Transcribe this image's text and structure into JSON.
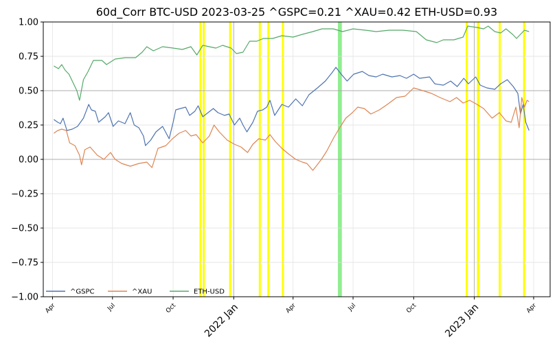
{
  "chart_data": {
    "type": "line",
    "title": "60d_Corr BTC-USD 2023-03-25 ^GSPC=0.21 ^XAU=0.42 ETH-USD=0.93",
    "xlabel": "",
    "ylabel": "",
    "x_range": [
      "2021-03-18",
      "2023-04-26"
    ],
    "ylim": [
      -1.0,
      1.0
    ],
    "y_ticks": [
      -1.0,
      -0.75,
      -0.5,
      -0.25,
      0.0,
      0.25,
      0.5,
      0.75,
      1.0
    ],
    "y_tick_labels": [
      "−1.00",
      "−0.75",
      "−0.50",
      "−0.25",
      "0.00",
      "0.25",
      "0.50",
      "0.75",
      "1.00"
    ],
    "x_ticks": [
      {
        "date": "2021-04-01",
        "label": "Apr",
        "major": false
      },
      {
        "date": "2021-07-01",
        "label": "Jul",
        "major": false
      },
      {
        "date": "2021-10-01",
        "label": "Oct",
        "major": false
      },
      {
        "date": "2022-01-01",
        "label": "2022 Jan",
        "major": true
      },
      {
        "date": "2022-04-01",
        "label": "Apr",
        "major": false
      },
      {
        "date": "2022-07-01",
        "label": "Jul",
        "major": false
      },
      {
        "date": "2022-10-01",
        "label": "Oct",
        "major": false
      },
      {
        "date": "2023-01-01",
        "label": "2023 Jan",
        "major": true
      },
      {
        "date": "2023-04-01",
        "label": "Apr",
        "major": false
      }
    ],
    "grid": true,
    "legend_position": "lower-left",
    "hlines": [
      0.0,
      0.5
    ],
    "highlight_bands": [
      {
        "start": "2021-11-10",
        "end": "2021-11-12",
        "color": "#ffff00"
      },
      {
        "start": "2021-11-15",
        "end": "2021-11-18",
        "color": "#ffff00"
      },
      {
        "start": "2021-12-25",
        "end": "2021-12-27",
        "color": "#ffff00"
      },
      {
        "start": "2022-02-08",
        "end": "2022-02-10",
        "color": "#ffff00"
      },
      {
        "start": "2022-02-21",
        "end": "2022-02-24",
        "color": "#ffff00"
      },
      {
        "start": "2022-03-15",
        "end": "2022-03-18",
        "color": "#ffff00"
      },
      {
        "start": "2022-06-08",
        "end": "2022-06-14",
        "color": "#90ee90"
      },
      {
        "start": "2022-12-19",
        "end": "2022-12-22",
        "color": "#ffff00"
      },
      {
        "start": "2023-01-05",
        "end": "2023-01-09",
        "color": "#ffff00"
      },
      {
        "start": "2023-02-07",
        "end": "2023-02-09",
        "color": "#ffff00"
      },
      {
        "start": "2023-03-16",
        "end": "2023-03-17",
        "color": "#ffff00"
      }
    ],
    "series": [
      {
        "name": "^GSPC",
        "color": "#4c72b0",
        "points": [
          [
            "2021-04-03",
            0.29
          ],
          [
            "2021-04-09",
            0.27
          ],
          [
            "2021-04-13",
            0.26
          ],
          [
            "2021-04-17",
            0.3
          ],
          [
            "2021-04-23",
            0.21
          ],
          [
            "2021-05-01",
            0.22
          ],
          [
            "2021-05-09",
            0.24
          ],
          [
            "2021-05-18",
            0.3
          ],
          [
            "2021-05-26",
            0.4
          ],
          [
            "2021-05-30",
            0.36
          ],
          [
            "2021-06-05",
            0.35
          ],
          [
            "2021-06-10",
            0.27
          ],
          [
            "2021-06-20",
            0.31
          ],
          [
            "2021-06-25",
            0.34
          ],
          [
            "2021-07-02",
            0.24
          ],
          [
            "2021-07-10",
            0.28
          ],
          [
            "2021-07-20",
            0.26
          ],
          [
            "2021-07-28",
            0.34
          ],
          [
            "2021-08-03",
            0.25
          ],
          [
            "2021-08-10",
            0.23
          ],
          [
            "2021-08-17",
            0.17
          ],
          [
            "2021-08-20",
            0.1
          ],
          [
            "2021-08-28",
            0.14
          ],
          [
            "2021-09-05",
            0.2
          ],
          [
            "2021-09-15",
            0.24
          ],
          [
            "2021-09-25",
            0.15
          ],
          [
            "2021-10-01",
            0.27
          ],
          [
            "2021-10-05",
            0.36
          ],
          [
            "2021-10-12",
            0.37
          ],
          [
            "2021-10-20",
            0.38
          ],
          [
            "2021-10-26",
            0.32
          ],
          [
            "2021-11-03",
            0.35
          ],
          [
            "2021-11-08",
            0.39
          ],
          [
            "2021-11-15",
            0.31
          ],
          [
            "2021-11-23",
            0.34
          ],
          [
            "2021-12-01",
            0.37
          ],
          [
            "2021-12-08",
            0.34
          ],
          [
            "2021-12-18",
            0.32
          ],
          [
            "2021-12-25",
            0.33
          ],
          [
            "2022-01-02",
            0.25
          ],
          [
            "2022-01-10",
            0.3
          ],
          [
            "2022-01-15",
            0.25
          ],
          [
            "2022-01-21",
            0.2
          ],
          [
            "2022-01-30",
            0.27
          ],
          [
            "2022-02-06",
            0.35
          ],
          [
            "2022-02-14",
            0.36
          ],
          [
            "2022-02-20",
            0.38
          ],
          [
            "2022-02-25",
            0.43
          ],
          [
            "2022-03-04",
            0.32
          ],
          [
            "2022-03-15",
            0.4
          ],
          [
            "2022-03-25",
            0.38
          ],
          [
            "2022-04-05",
            0.44
          ],
          [
            "2022-04-15",
            0.39
          ],
          [
            "2022-04-25",
            0.47
          ],
          [
            "2022-05-08",
            0.52
          ],
          [
            "2022-05-20",
            0.57
          ],
          [
            "2022-05-30",
            0.63
          ],
          [
            "2022-06-05",
            0.67
          ],
          [
            "2022-06-13",
            0.62
          ],
          [
            "2022-06-22",
            0.57
          ],
          [
            "2022-07-02",
            0.62
          ],
          [
            "2022-07-15",
            0.64
          ],
          [
            "2022-07-25",
            0.61
          ],
          [
            "2022-08-05",
            0.6
          ],
          [
            "2022-08-15",
            0.62
          ],
          [
            "2022-08-29",
            0.6
          ],
          [
            "2022-09-10",
            0.61
          ],
          [
            "2022-09-20",
            0.59
          ],
          [
            "2022-10-01",
            0.62
          ],
          [
            "2022-10-10",
            0.59
          ],
          [
            "2022-10-25",
            0.6
          ],
          [
            "2022-11-02",
            0.55
          ],
          [
            "2022-11-15",
            0.54
          ],
          [
            "2022-11-26",
            0.57
          ],
          [
            "2022-12-06",
            0.53
          ],
          [
            "2022-12-16",
            0.59
          ],
          [
            "2022-12-23",
            0.55
          ],
          [
            "2023-01-03",
            0.6
          ],
          [
            "2023-01-10",
            0.54
          ],
          [
            "2023-01-20",
            0.52
          ],
          [
            "2023-02-01",
            0.51
          ],
          [
            "2023-02-10",
            0.55
          ],
          [
            "2023-02-20",
            0.58
          ],
          [
            "2023-03-01",
            0.53
          ],
          [
            "2023-03-08",
            0.48
          ],
          [
            "2023-03-12",
            0.33
          ],
          [
            "2023-03-16",
            0.4
          ],
          [
            "2023-03-20",
            0.27
          ],
          [
            "2023-03-25",
            0.21
          ]
        ]
      },
      {
        "name": "^XAU",
        "color": "#dd8452",
        "points": [
          [
            "2021-04-03",
            0.19
          ],
          [
            "2021-04-09",
            0.21
          ],
          [
            "2021-04-15",
            0.22
          ],
          [
            "2021-04-22",
            0.21
          ],
          [
            "2021-04-27",
            0.12
          ],
          [
            "2021-05-05",
            0.1
          ],
          [
            "2021-05-12",
            0.03
          ],
          [
            "2021-05-15",
            -0.04
          ],
          [
            "2021-05-20",
            0.07
          ],
          [
            "2021-05-28",
            0.09
          ],
          [
            "2021-06-08",
            0.03
          ],
          [
            "2021-06-18",
            0.0
          ],
          [
            "2021-06-28",
            0.05
          ],
          [
            "2021-07-05",
            0.0
          ],
          [
            "2021-07-15",
            -0.03
          ],
          [
            "2021-07-28",
            -0.05
          ],
          [
            "2021-08-10",
            -0.03
          ],
          [
            "2021-08-22",
            -0.02
          ],
          [
            "2021-08-30",
            -0.06
          ],
          [
            "2021-09-08",
            0.08
          ],
          [
            "2021-09-20",
            0.1
          ],
          [
            "2021-09-30",
            0.15
          ],
          [
            "2021-10-10",
            0.19
          ],
          [
            "2021-10-20",
            0.21
          ],
          [
            "2021-10-28",
            0.17
          ],
          [
            "2021-11-05",
            0.18
          ],
          [
            "2021-11-15",
            0.12
          ],
          [
            "2021-11-25",
            0.17
          ],
          [
            "2021-12-02",
            0.25
          ],
          [
            "2021-12-10",
            0.2
          ],
          [
            "2021-12-22",
            0.14
          ],
          [
            "2022-01-02",
            0.11
          ],
          [
            "2022-01-12",
            0.09
          ],
          [
            "2022-01-22",
            0.05
          ],
          [
            "2022-01-30",
            0.11
          ],
          [
            "2022-02-08",
            0.15
          ],
          [
            "2022-02-18",
            0.14
          ],
          [
            "2022-02-25",
            0.18
          ],
          [
            "2022-03-05",
            0.13
          ],
          [
            "2022-03-15",
            0.08
          ],
          [
            "2022-03-25",
            0.04
          ],
          [
            "2022-04-05",
            0.0
          ],
          [
            "2022-04-15",
            -0.02
          ],
          [
            "2022-04-22",
            -0.03
          ],
          [
            "2022-05-01",
            -0.08
          ],
          [
            "2022-05-06",
            -0.05
          ],
          [
            "2022-05-14",
            0.0
          ],
          [
            "2022-05-22",
            0.06
          ],
          [
            "2022-06-02",
            0.16
          ],
          [
            "2022-06-12",
            0.24
          ],
          [
            "2022-06-20",
            0.3
          ],
          [
            "2022-06-30",
            0.34
          ],
          [
            "2022-07-08",
            0.38
          ],
          [
            "2022-07-18",
            0.37
          ],
          [
            "2022-07-28",
            0.33
          ],
          [
            "2022-08-10",
            0.36
          ],
          [
            "2022-08-22",
            0.4
          ],
          [
            "2022-09-05",
            0.45
          ],
          [
            "2022-09-18",
            0.46
          ],
          [
            "2022-10-01",
            0.52
          ],
          [
            "2022-10-15",
            0.5
          ],
          [
            "2022-10-28",
            0.48
          ],
          [
            "2022-11-10",
            0.45
          ],
          [
            "2022-11-25",
            0.42
          ],
          [
            "2022-12-05",
            0.45
          ],
          [
            "2022-12-15",
            0.41
          ],
          [
            "2022-12-25",
            0.43
          ],
          [
            "2023-01-05",
            0.4
          ],
          [
            "2023-01-15",
            0.37
          ],
          [
            "2023-01-28",
            0.3
          ],
          [
            "2023-02-08",
            0.34
          ],
          [
            "2023-02-18",
            0.28
          ],
          [
            "2023-02-26",
            0.27
          ],
          [
            "2023-03-05",
            0.38
          ],
          [
            "2023-03-10",
            0.23
          ],
          [
            "2023-03-14",
            0.45
          ],
          [
            "2023-03-18",
            0.38
          ],
          [
            "2023-03-22",
            0.43
          ],
          [
            "2023-03-25",
            0.42
          ]
        ]
      },
      {
        "name": "ETH-USD",
        "color": "#55a868",
        "points": [
          [
            "2021-04-03",
            0.68
          ],
          [
            "2021-04-10",
            0.66
          ],
          [
            "2021-04-15",
            0.69
          ],
          [
            "2021-04-20",
            0.65
          ],
          [
            "2021-04-26",
            0.62
          ],
          [
            "2021-05-02",
            0.56
          ],
          [
            "2021-05-08",
            0.5
          ],
          [
            "2021-05-12",
            0.43
          ],
          [
            "2021-05-18",
            0.58
          ],
          [
            "2021-05-25",
            0.64
          ],
          [
            "2021-06-02",
            0.72
          ],
          [
            "2021-06-15",
            0.72
          ],
          [
            "2021-06-22",
            0.69
          ],
          [
            "2021-07-05",
            0.73
          ],
          [
            "2021-07-20",
            0.74
          ],
          [
            "2021-08-05",
            0.74
          ],
          [
            "2021-08-15",
            0.78
          ],
          [
            "2021-08-22",
            0.82
          ],
          [
            "2021-09-01",
            0.79
          ],
          [
            "2021-09-15",
            0.82
          ],
          [
            "2021-10-01",
            0.81
          ],
          [
            "2021-10-15",
            0.8
          ],
          [
            "2021-10-28",
            0.82
          ],
          [
            "2021-11-06",
            0.76
          ],
          [
            "2021-11-15",
            0.83
          ],
          [
            "2021-11-25",
            0.82
          ],
          [
            "2021-12-05",
            0.81
          ],
          [
            "2021-12-15",
            0.83
          ],
          [
            "2021-12-28",
            0.81
          ],
          [
            "2022-01-05",
            0.77
          ],
          [
            "2022-01-15",
            0.78
          ],
          [
            "2022-01-25",
            0.86
          ],
          [
            "2022-02-05",
            0.86
          ],
          [
            "2022-02-15",
            0.88
          ],
          [
            "2022-03-01",
            0.88
          ],
          [
            "2022-03-15",
            0.9
          ],
          [
            "2022-04-01",
            0.89
          ],
          [
            "2022-04-15",
            0.91
          ],
          [
            "2022-05-01",
            0.93
          ],
          [
            "2022-05-15",
            0.95
          ],
          [
            "2022-06-01",
            0.95
          ],
          [
            "2022-06-15",
            0.93
          ],
          [
            "2022-07-01",
            0.95
          ],
          [
            "2022-07-20",
            0.94
          ],
          [
            "2022-08-05",
            0.93
          ],
          [
            "2022-08-25",
            0.94
          ],
          [
            "2022-09-15",
            0.94
          ],
          [
            "2022-10-05",
            0.93
          ],
          [
            "2022-10-20",
            0.87
          ],
          [
            "2022-11-05",
            0.85
          ],
          [
            "2022-11-15",
            0.87
          ],
          [
            "2022-12-01",
            0.87
          ],
          [
            "2022-12-15",
            0.89
          ],
          [
            "2022-12-22",
            0.97
          ],
          [
            "2023-01-05",
            0.96
          ],
          [
            "2023-01-15",
            0.95
          ],
          [
            "2023-01-22",
            0.97
          ],
          [
            "2023-02-01",
            0.93
          ],
          [
            "2023-02-10",
            0.92
          ],
          [
            "2023-02-18",
            0.95
          ],
          [
            "2023-02-28",
            0.91
          ],
          [
            "2023-03-06",
            0.88
          ],
          [
            "2023-03-12",
            0.91
          ],
          [
            "2023-03-18",
            0.94
          ],
          [
            "2023-03-25",
            0.93
          ]
        ]
      }
    ]
  }
}
